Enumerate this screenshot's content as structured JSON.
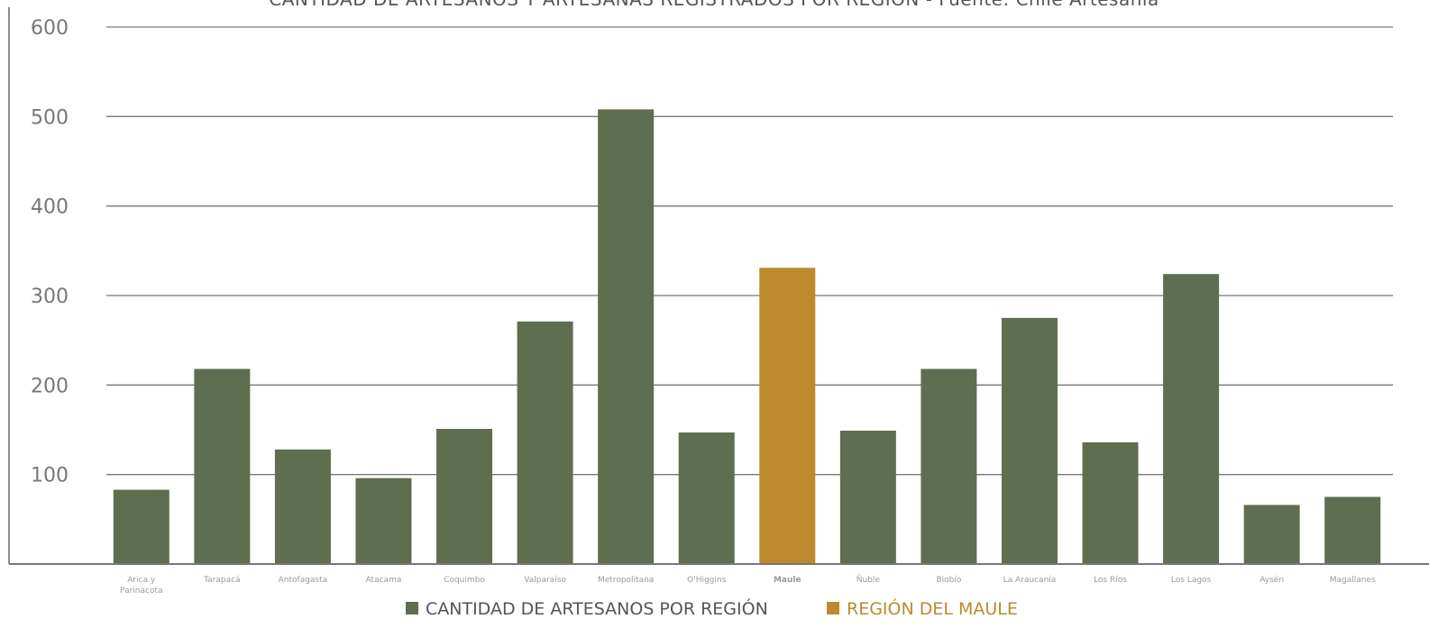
{
  "chart_data": {
    "type": "bar",
    "title": "CANTIDAD DE ARTESANOS Y ARTESANAS REGISTRADOS POR REGIÓN - Fuente: Chile Artesanía",
    "categories": [
      "Arica y Parinacota",
      "Tarapacá",
      "Antofagasta",
      "Atacama",
      "Coquimbo",
      "Valparaíso",
      "Metropolitana",
      "O'Higgins",
      "Maule",
      "Ñuble",
      "Biobío",
      "La Araucanía",
      "Los Ríos",
      "Los Lagos",
      "Aysén",
      "Magallanes"
    ],
    "values": [
      83,
      218,
      128,
      96,
      151,
      271,
      508,
      147,
      331,
      149,
      218,
      275,
      136,
      324,
      66,
      75
    ],
    "highlight_index": 8,
    "ylim": [
      0,
      600
    ],
    "yticks": [
      100,
      200,
      300,
      400,
      500,
      600
    ],
    "grid": true,
    "legend_position": "bottom-center",
    "legend": [
      {
        "label": "CANTIDAD DE ARTESANOS POR REGIÓN",
        "color": "#5e6e4f"
      },
      {
        "label": "REGIÓN DEL MAULE",
        "color": "#bc8a2d"
      }
    ],
    "colors": {
      "default": "#5e6e4f",
      "highlight": "#bc8a2d"
    }
  }
}
